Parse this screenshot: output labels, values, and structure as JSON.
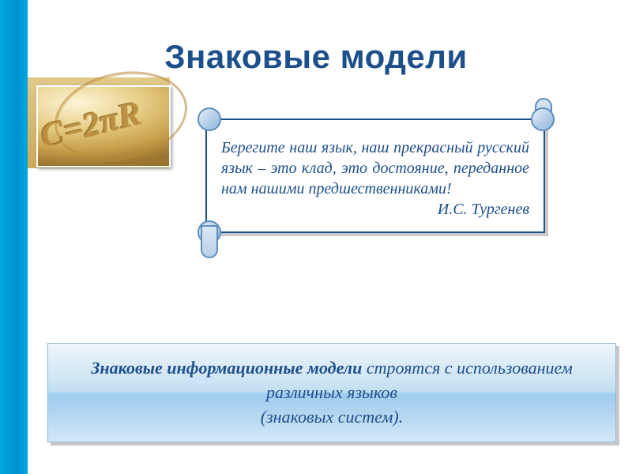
{
  "title": "Знаковые модели",
  "photo": {
    "formula": "C=2πR",
    "background_gradient": [
      "#fdf5d8",
      "#e8cf88",
      "#c79f4a",
      "#9c7530"
    ],
    "text_color": "#b88a3a"
  },
  "quote": {
    "body": "Берегите наш язык, наш прекрасный русский язык – это клад, это достояние, переданное нам нашими предшественниками!",
    "author": "И.С. Тургенев",
    "text_color": "#1d4f8b",
    "border_color": "#1d4f8b",
    "roll_color": "#b8d0e8",
    "fontsize": 20
  },
  "definition": {
    "strong": "Знаковые информационные модели",
    "rest_line1": " строятся с использованием различных языков",
    "line2": "(знаковых систем).",
    "gradient": [
      "#eff6fb",
      "#c4dff2",
      "#9ecbed",
      "#d3e7f6"
    ],
    "text_color": "#1d4f8b",
    "fontsize": 22
  },
  "colors": {
    "title": "#1d4f8b",
    "sidebar_stripe": "#00a9e0",
    "tan_band": [
      "#e0c98a",
      "#cda85a"
    ],
    "shadow": "#c8c8c8",
    "background": "#ffffff"
  },
  "typography": {
    "title_fontsize": 42,
    "title_family": "Arial",
    "body_family": "Georgia",
    "italic": true
  }
}
